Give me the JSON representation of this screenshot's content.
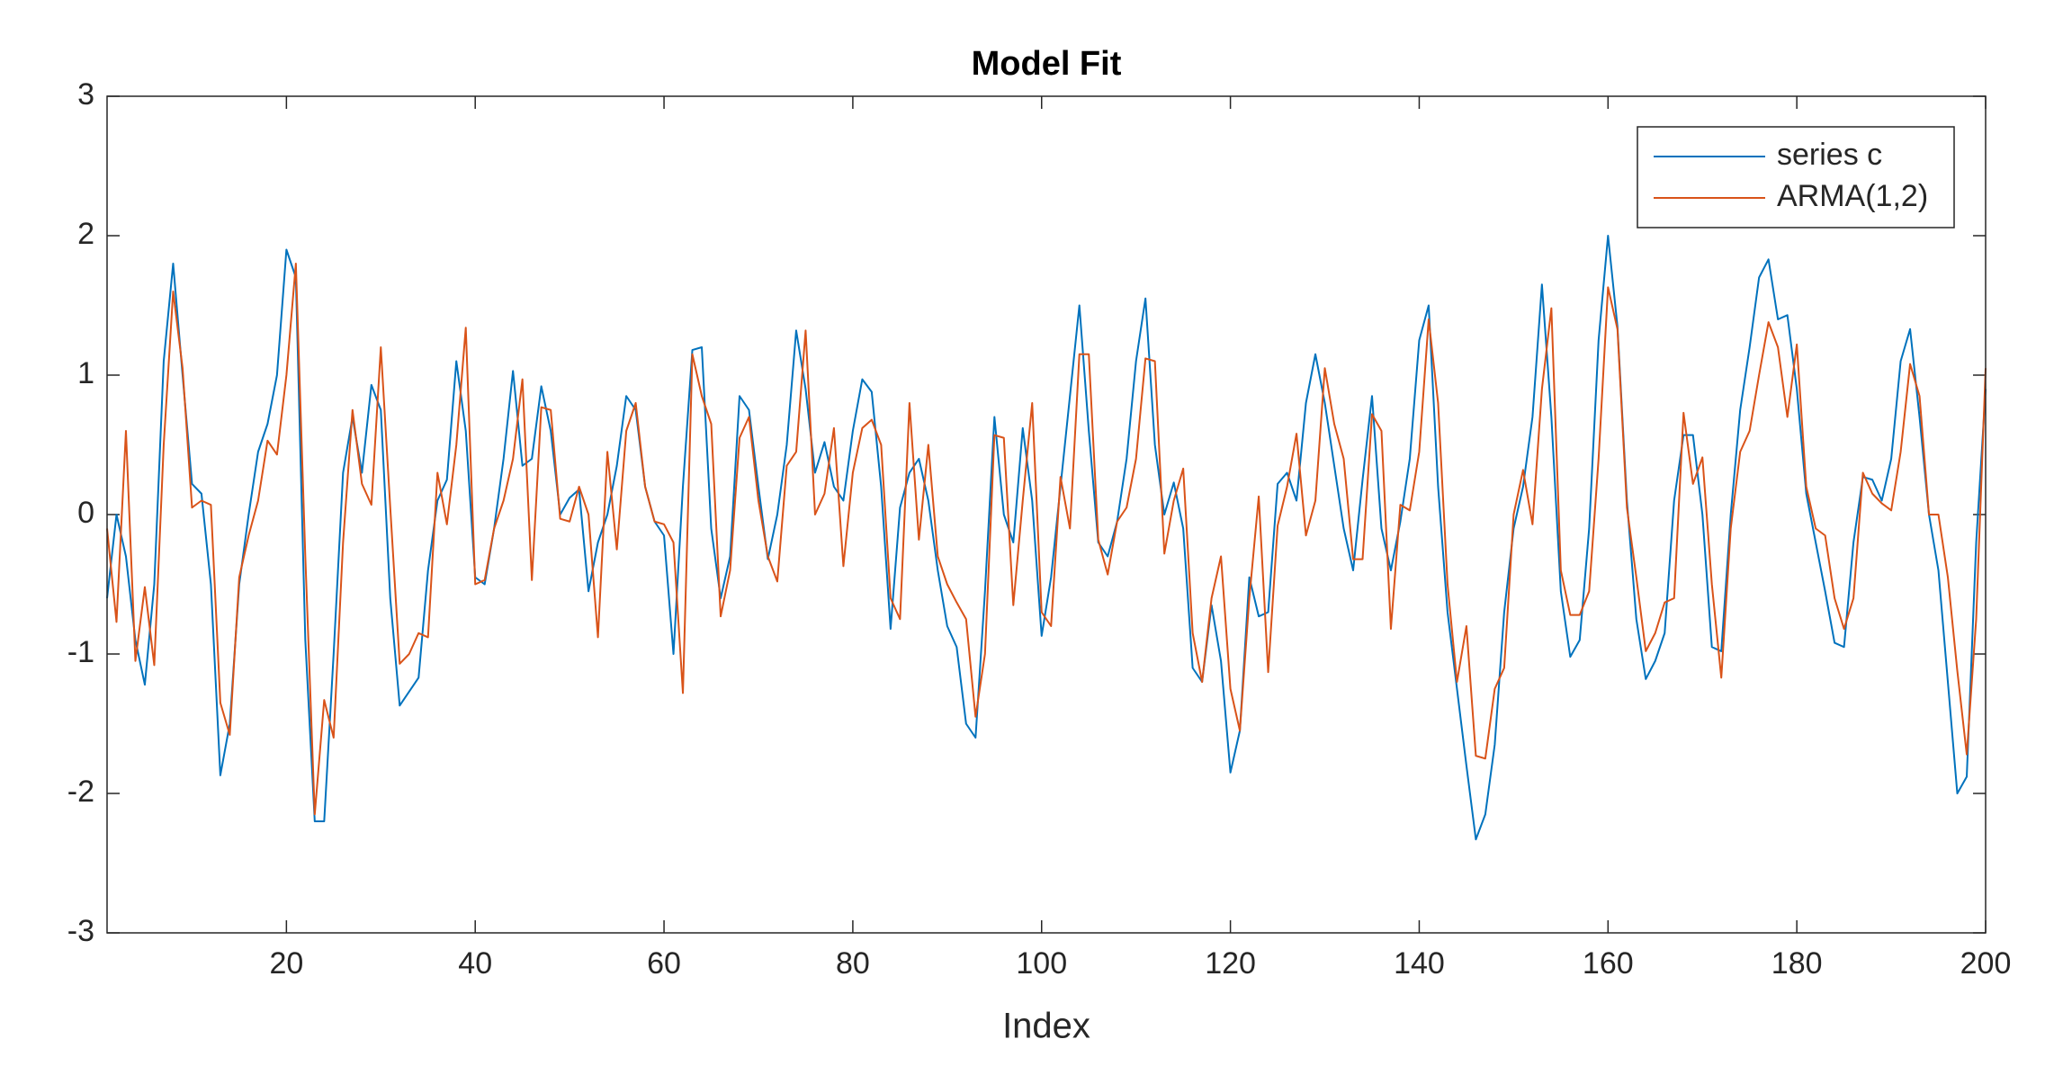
{
  "chart_data": {
    "type": "line",
    "title": "Model Fit",
    "x_label": "Index",
    "x": [
      1,
      2,
      3,
      4,
      5,
      6,
      7,
      8,
      9,
      10,
      11,
      12,
      13,
      14,
      15,
      16,
      17,
      18,
      19,
      20,
      21,
      22,
      23,
      24,
      25,
      26,
      27,
      28,
      29,
      30,
      31,
      32,
      33,
      34,
      35,
      36,
      37,
      38,
      39,
      40,
      41,
      42,
      43,
      44,
      45,
      46,
      47,
      48,
      49,
      50,
      51,
      52,
      53,
      54,
      55,
      56,
      57,
      58,
      59,
      60,
      61,
      62,
      63,
      64,
      65,
      66,
      67,
      68,
      69,
      70,
      71,
      72,
      73,
      74,
      75,
      76,
      77,
      78,
      79,
      80,
      81,
      82,
      83,
      84,
      85,
      86,
      87,
      88,
      89,
      90,
      91,
      92,
      93,
      94,
      95,
      96,
      97,
      98,
      99,
      100,
      101,
      102,
      103,
      104,
      105,
      106,
      107,
      108,
      109,
      110,
      111,
      112,
      113,
      114,
      115,
      116,
      117,
      118,
      119,
      120,
      121,
      122,
      123,
      124,
      125,
      126,
      127,
      128,
      129,
      130,
      131,
      132,
      133,
      134,
      135,
      136,
      137,
      138,
      139,
      140,
      141,
      142,
      143,
      144,
      145,
      146,
      147,
      148,
      149,
      150,
      151,
      152,
      153,
      154,
      155,
      156,
      157,
      158,
      159,
      160,
      161,
      162,
      163,
      164,
      165,
      166,
      167,
      168,
      169,
      170,
      171,
      172,
      173,
      174,
      175,
      176,
      177,
      178,
      179,
      180,
      181,
      182,
      183,
      184,
      185,
      186,
      187,
      188,
      189,
      190,
      191,
      192,
      193,
      194,
      195,
      196,
      197,
      198,
      199,
      200
    ],
    "series": [
      {
        "name": "series c",
        "color": "#0072BD",
        "values": [
          -0.6,
          0.0,
          -0.3,
          -0.9,
          -1.22,
          -0.5,
          1.1,
          1.8,
          1.0,
          0.22,
          0.15,
          -0.5,
          -1.87,
          -1.5,
          -0.5,
          0.0,
          0.45,
          0.65,
          1.0,
          1.9,
          1.7,
          -0.9,
          -2.2,
          -2.2,
          -1.0,
          0.3,
          0.7,
          0.3,
          0.93,
          0.75,
          -0.6,
          -1.37,
          -1.27,
          -1.17,
          -0.4,
          0.1,
          0.25,
          1.1,
          0.6,
          -0.45,
          -0.5,
          -0.1,
          0.4,
          1.03,
          0.35,
          0.4,
          0.92,
          0.6,
          0.0,
          0.12,
          0.18,
          -0.55,
          -0.2,
          0.0,
          0.35,
          0.85,
          0.75,
          0.2,
          -0.05,
          -0.15,
          -1.0,
          0.2,
          1.18,
          1.2,
          -0.1,
          -0.6,
          -0.3,
          0.85,
          0.75,
          0.2,
          -0.32,
          0.0,
          0.5,
          1.32,
          0.9,
          0.3,
          0.52,
          0.2,
          0.1,
          0.6,
          0.97,
          0.88,
          0.2,
          -0.82,
          0.05,
          0.3,
          0.4,
          0.1,
          -0.4,
          -0.8,
          -0.95,
          -1.5,
          -1.6,
          -0.55,
          0.7,
          0.0,
          -0.2,
          0.62,
          0.1,
          -0.87,
          -0.45,
          0.2,
          0.85,
          1.5,
          0.6,
          -0.2,
          -0.3,
          -0.05,
          0.4,
          1.1,
          1.55,
          0.5,
          0.0,
          0.23,
          -0.1,
          -1.1,
          -1.2,
          -0.65,
          -1.05,
          -1.85,
          -1.55,
          -0.45,
          -0.73,
          -0.7,
          0.22,
          0.3,
          0.1,
          0.8,
          1.15,
          0.8,
          0.35,
          -0.1,
          -0.4,
          0.25,
          0.85,
          -0.1,
          -0.4,
          -0.05,
          0.4,
          1.25,
          1.5,
          0.2,
          -0.7,
          -1.25,
          -1.8,
          -2.33,
          -2.15,
          -1.65,
          -0.7,
          -0.1,
          0.2,
          0.7,
          1.65,
          0.7,
          -0.55,
          -1.02,
          -0.9,
          -0.1,
          1.25,
          2.0,
          1.35,
          0.1,
          -0.75,
          -1.18,
          -1.05,
          -0.85,
          0.1,
          0.57,
          0.57,
          0.0,
          -0.95,
          -0.98,
          0.0,
          0.75,
          1.2,
          1.7,
          1.83,
          1.4,
          1.43,
          0.9,
          0.15,
          -0.2,
          -0.55,
          -0.92,
          -0.95,
          -0.2,
          0.27,
          0.25,
          0.1,
          0.4,
          1.1,
          1.33,
          0.7,
          0.0,
          -0.4,
          -1.2,
          -2.0,
          -1.88,
          -0.2,
          0.9
        ]
      },
      {
        "name": "ARMA(1,2)",
        "color": "#D95319",
        "values": [
          -0.1,
          -0.77,
          0.6,
          -1.05,
          -0.52,
          -1.08,
          0.5,
          1.6,
          1.05,
          0.05,
          0.1,
          0.07,
          -1.35,
          -1.58,
          -0.45,
          -0.15,
          0.1,
          0.53,
          0.43,
          1.0,
          1.8,
          -0.3,
          -2.15,
          -1.33,
          -1.6,
          -0.2,
          0.75,
          0.22,
          0.07,
          1.2,
          0.05,
          -1.07,
          -1.0,
          -0.85,
          -0.88,
          0.3,
          -0.07,
          0.5,
          1.34,
          -0.5,
          -0.47,
          -0.1,
          0.1,
          0.4,
          0.97,
          -0.47,
          0.77,
          0.75,
          -0.03,
          -0.05,
          0.2,
          0.0,
          -0.88,
          0.45,
          -0.25,
          0.6,
          0.8,
          0.2,
          -0.05,
          -0.07,
          -0.2,
          -1.28,
          1.15,
          0.85,
          0.65,
          -0.73,
          -0.4,
          0.55,
          0.7,
          0.1,
          -0.3,
          -0.48,
          0.35,
          0.45,
          1.32,
          0.0,
          0.15,
          0.62,
          -0.37,
          0.3,
          0.62,
          0.68,
          0.5,
          -0.6,
          -0.75,
          0.8,
          -0.18,
          0.5,
          -0.3,
          -0.5,
          -0.63,
          -0.75,
          -1.45,
          -1.0,
          0.57,
          0.55,
          -0.65,
          0.1,
          0.8,
          -0.7,
          -0.8,
          0.27,
          -0.1,
          1.15,
          1.15,
          -0.18,
          -0.43,
          -0.05,
          0.05,
          0.4,
          1.12,
          1.1,
          -0.28,
          0.1,
          0.33,
          -0.85,
          -1.2,
          -0.6,
          -0.3,
          -1.25,
          -1.55,
          -0.6,
          0.13,
          -1.13,
          -0.08,
          0.2,
          0.58,
          -0.15,
          0.1,
          1.05,
          0.65,
          0.4,
          -0.32,
          -0.32,
          0.72,
          0.6,
          -0.82,
          0.07,
          0.03,
          0.45,
          1.4,
          0.8,
          -0.5,
          -1.2,
          -0.8,
          -1.73,
          -1.75,
          -1.25,
          -1.1,
          0.0,
          0.32,
          -0.07,
          0.9,
          1.48,
          -0.4,
          -0.72,
          -0.72,
          -0.55,
          0.4,
          1.63,
          1.33,
          0.05,
          -0.45,
          -0.98,
          -0.85,
          -0.63,
          -0.6,
          0.73,
          0.22,
          0.41,
          -0.5,
          -1.17,
          -0.1,
          0.45,
          0.6,
          1.0,
          1.38,
          1.2,
          0.7,
          1.22,
          0.2,
          -0.1,
          -0.15,
          -0.6,
          -0.82,
          -0.6,
          0.3,
          0.15,
          0.08,
          0.03,
          0.45,
          1.08,
          0.85,
          0.0,
          0.0,
          -0.45,
          -1.12,
          -1.72,
          -0.75,
          1.05
        ]
      }
    ],
    "xlim": [
      1,
      200
    ],
    "xticks": [
      20,
      40,
      60,
      80,
      100,
      120,
      140,
      160,
      180,
      200
    ],
    "ylim": [
      -3,
      3
    ],
    "yticks": [
      -3,
      -2,
      -1,
      0,
      1,
      2,
      3
    ],
    "grid": false,
    "legend": "northeast"
  }
}
